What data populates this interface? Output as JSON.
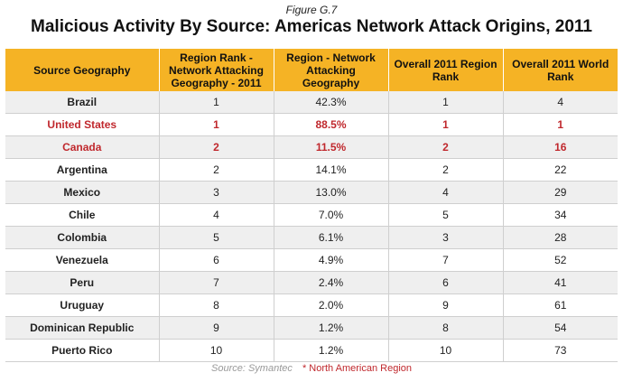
{
  "figure_label": "Figure G.7",
  "title": "Malicious Activity By Source: Americas Network Attack Origins, 2011",
  "columns": [
    "Source Geography",
    "Region Rank - Network Attacking Geography - 2011",
    "Region - Network Attacking Geography",
    "Overall 2011 Region Rank",
    "Overall 2011 World Rank"
  ],
  "rows": [
    {
      "geo": "Brazil",
      "rank": "1",
      "pct": "42.3%",
      "region_rank": "1",
      "world_rank": "4",
      "highlight": false
    },
    {
      "geo": "United States",
      "rank": "1",
      "pct": "88.5%",
      "region_rank": "1",
      "world_rank": "1",
      "highlight": true
    },
    {
      "geo": "Canada",
      "rank": "2",
      "pct": "11.5%",
      "region_rank": "2",
      "world_rank": "16",
      "highlight": true
    },
    {
      "geo": "Argentina",
      "rank": "2",
      "pct": "14.1%",
      "region_rank": "2",
      "world_rank": "22",
      "highlight": false
    },
    {
      "geo": "Mexico",
      "rank": "3",
      "pct": "13.0%",
      "region_rank": "4",
      "world_rank": "29",
      "highlight": false
    },
    {
      "geo": "Chile",
      "rank": "4",
      "pct": "7.0%",
      "region_rank": "5",
      "world_rank": "34",
      "highlight": false
    },
    {
      "geo": "Colombia",
      "rank": "5",
      "pct": "6.1%",
      "region_rank": "3",
      "world_rank": "28",
      "highlight": false
    },
    {
      "geo": "Venezuela",
      "rank": "6",
      "pct": "4.9%",
      "region_rank": "7",
      "world_rank": "52",
      "highlight": false
    },
    {
      "geo": "Peru",
      "rank": "7",
      "pct": "2.4%",
      "region_rank": "6",
      "world_rank": "41",
      "highlight": false
    },
    {
      "geo": "Uruguay",
      "rank": "8",
      "pct": "2.0%",
      "region_rank": "9",
      "world_rank": "61",
      "highlight": false
    },
    {
      "geo": "Dominican Republic",
      "rank": "9",
      "pct": "1.2%",
      "region_rank": "8",
      "world_rank": "54",
      "highlight": false
    },
    {
      "geo": "Puerto Rico",
      "rank": "10",
      "pct": "1.2%",
      "region_rank": "10",
      "world_rank": "73",
      "highlight": false
    }
  ],
  "footer": {
    "source": "Source: Symantec",
    "note": "* North American Region"
  },
  "colors": {
    "header_bg": "#f5b325",
    "highlight_text": "#c0282d",
    "shaded_row": "#efefef"
  }
}
